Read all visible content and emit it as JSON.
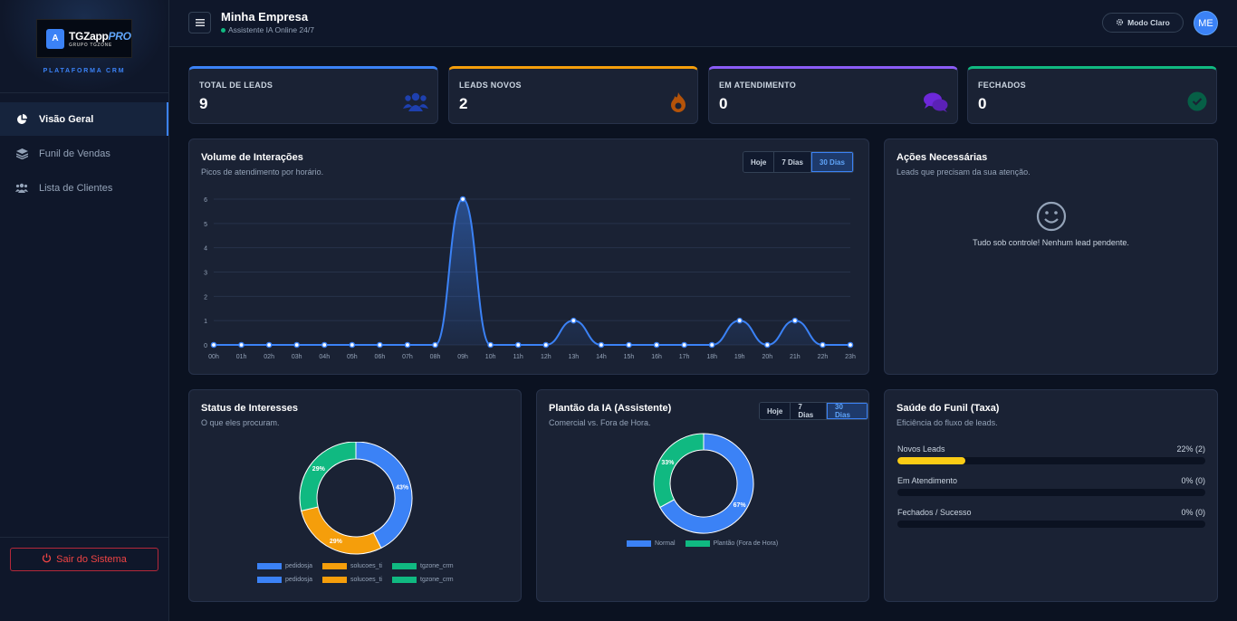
{
  "sidebar": {
    "logo": {
      "title": "TGZapp",
      "title_accent": "PRO",
      "subtitle": "GRUPO TGZONE",
      "mark": "A"
    },
    "caption": "PLATAFORMA CRM",
    "items": [
      {
        "label": "Visão Geral",
        "icon": "pie-chart-icon",
        "active": true
      },
      {
        "label": "Funil de Vendas",
        "icon": "layers-icon",
        "active": false
      },
      {
        "label": "Lista de Clientes",
        "icon": "users-icon",
        "active": false
      }
    ],
    "logout_label": "Sair do Sistema"
  },
  "header": {
    "company": "Minha Empresa",
    "status": "Assistente IA Online 24/7",
    "theme_label": "Modo Claro",
    "avatar_initials": "ME"
  },
  "stats": [
    {
      "label": "TOTAL DE LEADS",
      "value": "9",
      "color": "#3b82f6",
      "icon": "users-icon"
    },
    {
      "label": "LEADS NOVOS",
      "value": "2",
      "color": "#f59e0b",
      "icon": "fire-icon"
    },
    {
      "label": "EM ATENDIMENTO",
      "value": "0",
      "color": "#8b5cf6",
      "icon": "chat-icon"
    },
    {
      "label": "FECHADOS",
      "value": "0",
      "color": "#10b981",
      "icon": "check-circle-icon"
    }
  ],
  "volume": {
    "title": "Volume de Interações",
    "subtitle": "Picos de atendimento por horário.",
    "filters": [
      "Hoje",
      "7 Dias",
      "30 Dias"
    ],
    "active_filter": "30 Dias"
  },
  "actions": {
    "title": "Ações Necessárias",
    "subtitle": "Leads que precisam da sua atenção.",
    "empty_text": "Tudo sob controle! Nenhum lead pendente."
  },
  "interests": {
    "title": "Status de Interesses",
    "subtitle": "O que eles procuram."
  },
  "ai_shift": {
    "title": "Plantão da IA (Assistente)",
    "subtitle": "Comercial vs. Fora de Hora.",
    "filters": [
      "Hoje",
      "7 Dias",
      "30 Dias"
    ],
    "active_filter": "30 Dias"
  },
  "funnel": {
    "title": "Saúde do Funil (Taxa)",
    "subtitle": "Eficiência do fluxo de leads.",
    "rows": [
      {
        "label": "Novos Leads",
        "value_text": "22% (2)",
        "pct": 22,
        "color": "#facc15"
      },
      {
        "label": "Em Atendimento",
        "value_text": "0% (0)",
        "pct": 0,
        "color": "#3b82f6"
      },
      {
        "label": "Fechados / Sucesso",
        "value_text": "0% (0)",
        "pct": 0,
        "color": "#10b981"
      }
    ]
  },
  "chart_data": [
    {
      "type": "area",
      "x": [
        "00h",
        "01h",
        "02h",
        "03h",
        "04h",
        "05h",
        "06h",
        "07h",
        "08h",
        "09h",
        "10h",
        "11h",
        "12h",
        "13h",
        "14h",
        "15h",
        "16h",
        "17h",
        "18h",
        "19h",
        "20h",
        "21h",
        "22h",
        "23h"
      ],
      "values": [
        0,
        0,
        0,
        0,
        0,
        0,
        0,
        0,
        0,
        6,
        0,
        0,
        0,
        1,
        0,
        0,
        0,
        0,
        0,
        1,
        0,
        1,
        0,
        0
      ],
      "yticks": [
        0,
        1,
        2,
        3,
        4,
        5,
        6
      ],
      "ylim": [
        0,
        6
      ],
      "color": "#3b82f6",
      "grid": true
    },
    {
      "type": "pie",
      "donut": true,
      "slices": [
        {
          "label": "pedidosja",
          "value": 43,
          "text": "43%",
          "color": "#3b82f6"
        },
        {
          "label": "solucoes_ti",
          "value": 29,
          "text": "29%",
          "color": "#f59e0b"
        },
        {
          "label": "tgzone_crm",
          "value": 29,
          "text": "29%",
          "color": "#10b981"
        }
      ],
      "legend_placement": "bottom"
    },
    {
      "type": "pie",
      "donut": true,
      "slices": [
        {
          "label": "Normal",
          "value": 67,
          "text": "67%",
          "color": "#3b82f6"
        },
        {
          "label": "Plantão (Fora de Hora)",
          "value": 33,
          "text": "33%",
          "color": "#10b981"
        }
      ],
      "legend_placement": "bottom"
    }
  ]
}
